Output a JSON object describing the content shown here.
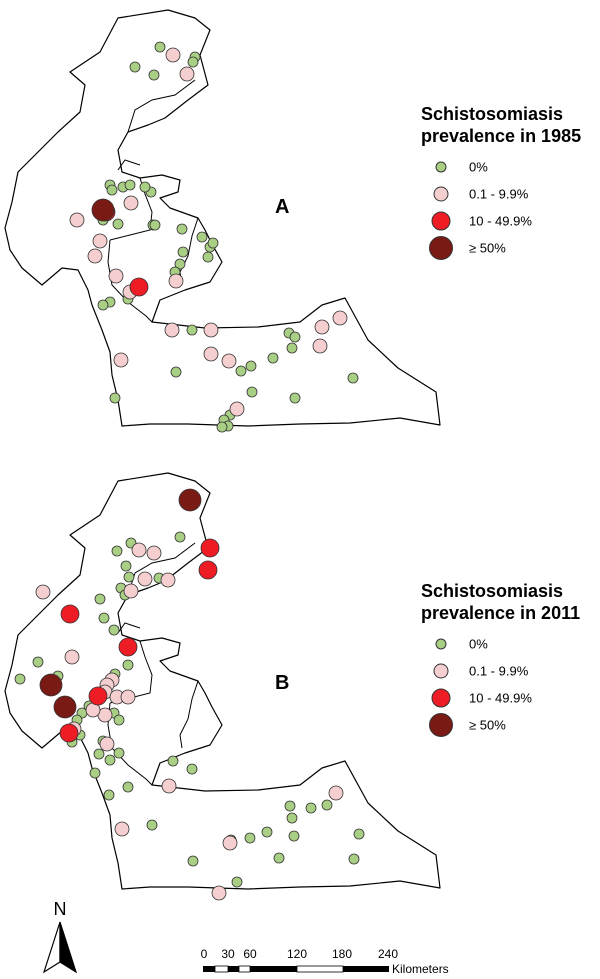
{
  "colors": {
    "cat0": "#a9cf85",
    "cat1": "#f5cfcf",
    "cat2": "#ee1c24",
    "cat3": "#7a1a15",
    "stroke": "#333333",
    "outline": "#000000"
  },
  "categories": [
    {
      "key": "cat0",
      "label": "0%"
    },
    {
      "key": "cat1",
      "label": "0.1 - 9.9%"
    },
    {
      "key": "cat2",
      "label": "10 - 49.9%"
    },
    {
      "key": "cat3",
      "label": "≥ 50%"
    }
  ],
  "panels": [
    {
      "label": "A",
      "legend_title": "Schistosomiasis prevalence in 1985"
    },
    {
      "label": "B",
      "legend_title": "Schistosomiasis prevalence in 2011"
    }
  ],
  "north_arrow": {
    "label": "N"
  },
  "scale_bar": {
    "labels": [
      "0",
      "30",
      "60",
      "120",
      "180",
      "240"
    ],
    "unit": "Kilometers"
  }
}
